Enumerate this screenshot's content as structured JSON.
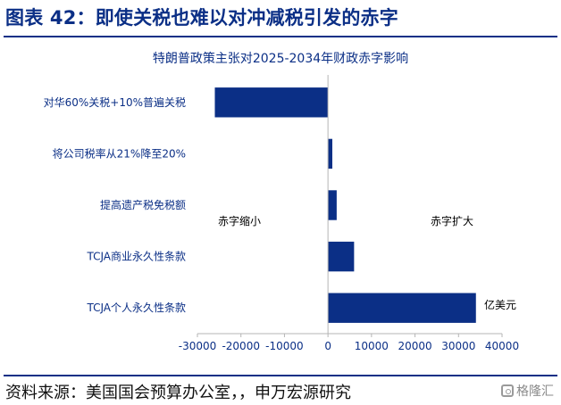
{
  "header": {
    "title": "图表 42：即使关税也难以对冲减税引发的赤字"
  },
  "chart_data": {
    "type": "bar",
    "orientation": "horizontal",
    "title": "特朗普政策主张对2025-2034年财政赤字影响",
    "categories": [
      "对华60%关税+10%普遍关税",
      "将公司税率从21%降至20%",
      "提高遗产税免税额",
      "TCJA商业永久性条款",
      "TCJA个人永久性条款"
    ],
    "values": [
      -26000,
      1000,
      2000,
      6000,
      34000
    ],
    "xlim": [
      -30000,
      40000
    ],
    "xticks": [
      -30000,
      -20000,
      -10000,
      0,
      10000,
      20000,
      30000,
      40000
    ],
    "unit": "亿美元",
    "annotations": {
      "left": "赤字缩小",
      "right": "赤字扩大"
    },
    "bar_color": "#0b2f86",
    "grid": false,
    "legend": false
  },
  "footer": {
    "source": "资料来源：美国国会预算办公室，，申万宏源研究",
    "watermark": "格隆汇"
  }
}
